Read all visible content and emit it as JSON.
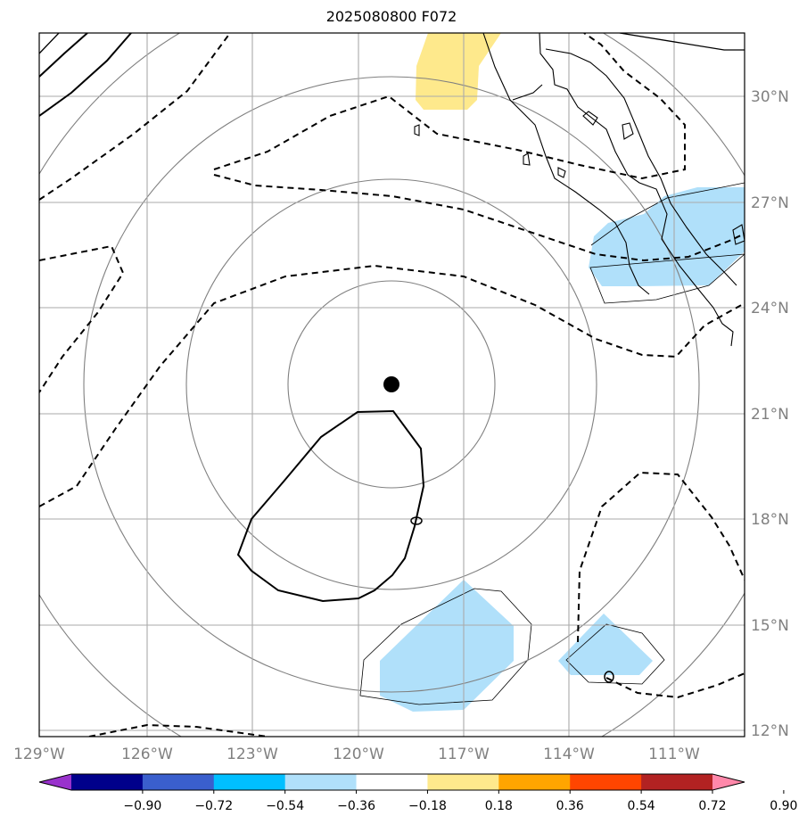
{
  "title": "2025080800 F072",
  "chart_data": {
    "type": "contour",
    "title": "2025080800 F072",
    "projection": "lat-lon map",
    "lon_range": [
      -129,
      -109
    ],
    "lat_range": [
      11.8,
      32
    ],
    "grid": true,
    "center_marker": {
      "lon": -119.1,
      "lat": 21.8
    },
    "lon_ticks": [
      "129°W",
      "126°W",
      "123°W",
      "120°W",
      "117°W",
      "114°W",
      "111°W"
    ],
    "lat_ticks": [
      "30°N",
      "27°N",
      "24°N",
      "21°N",
      "18°N",
      "15°N",
      "12°N"
    ],
    "colorbar": {
      "ticks": [
        "−0.90",
        "−0.72",
        "−0.54",
        "−0.36",
        "−0.18",
        "0.18",
        "0.36",
        "0.54",
        "0.72",
        "0.90"
      ],
      "levels": [
        -1.08,
        -0.9,
        -0.72,
        -0.54,
        -0.36,
        -0.18,
        0.18,
        0.36,
        0.54,
        0.72,
        0.9,
        1.08
      ],
      "colors": [
        "#9932cc",
        "#00008b",
        "#3a5fcd",
        "#00bfff",
        "#b0e0fa",
        "#ffffff",
        "#fee98c",
        "#ffa500",
        "#ff4500",
        "#b22222",
        "#ff88aa"
      ],
      "extend": "both"
    },
    "shaded_regions": [
      {
        "value_range": [
          0.18,
          0.36
        ],
        "color": "#fee98c",
        "location": "near 117.5°W, 30.5°N"
      },
      {
        "value_range": [
          -0.36,
          -0.18
        ],
        "color": "#b0e0fa",
        "location": "near 112°W, 26°N"
      },
      {
        "value_range": [
          -0.36,
          -0.18
        ],
        "color": "#b0e0fa",
        "location": "near 117°W, 14.3°N"
      },
      {
        "value_range": [
          -0.36,
          -0.18
        ],
        "color": "#b0e0fa",
        "location": "near 113°W, 14.2°N"
      }
    ]
  }
}
